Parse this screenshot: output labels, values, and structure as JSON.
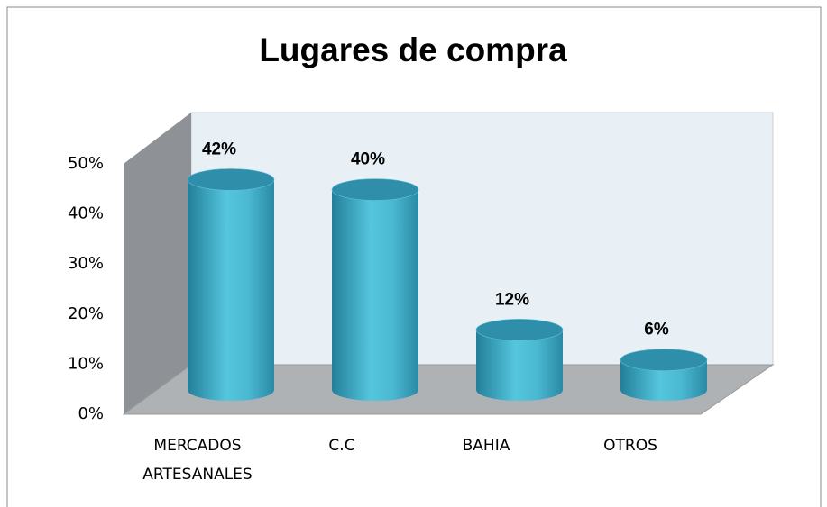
{
  "chart_data": {
    "type": "bar3d_cylinder",
    "title": "Lugares de compra",
    "categories": [
      "MERCADOS ARTESANALES",
      "C.C",
      "BAHIA",
      "OTROS"
    ],
    "values": [
      42,
      40,
      12,
      6
    ],
    "value_labels": [
      "42%",
      "40%",
      "12%",
      "6%"
    ],
    "color": "#4bb8d2",
    "ylim": [
      0,
      50
    ],
    "yticks": [
      {
        "value": 0,
        "label": "0%"
      },
      {
        "value": 10,
        "label": "10%"
      },
      {
        "value": 20,
        "label": "20%"
      },
      {
        "value": 30,
        "label": "30%"
      },
      {
        "value": 40,
        "label": "40%"
      },
      {
        "value": 50,
        "label": "50%"
      }
    ],
    "grid": false
  }
}
